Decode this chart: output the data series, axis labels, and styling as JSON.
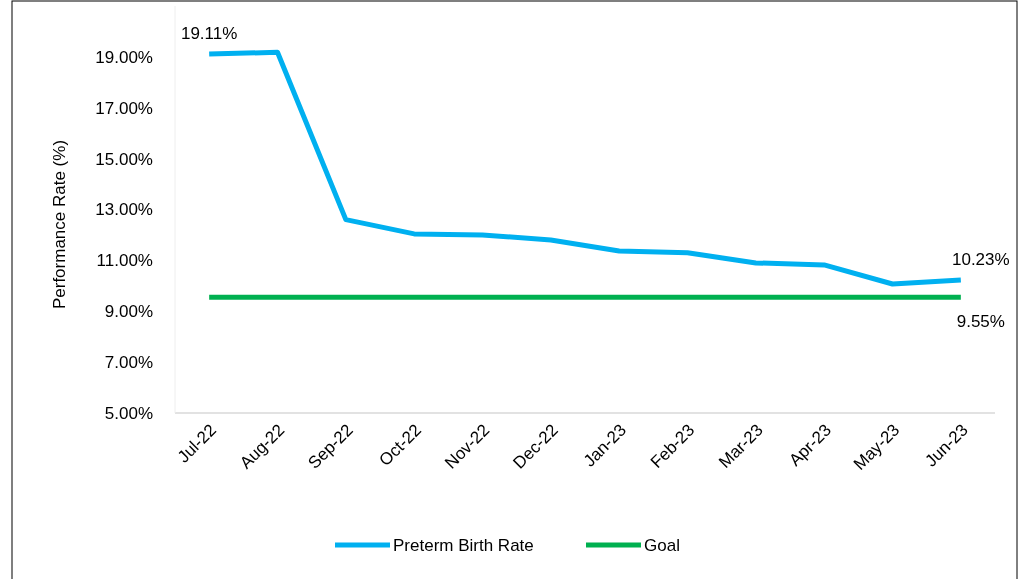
{
  "chart_data": {
    "type": "line",
    "ylabel": "Performance Rate (%)",
    "categories": [
      "Jul-22",
      "Aug-22",
      "Sep-22",
      "Oct-22",
      "Nov-22",
      "Dec-22",
      "Jan-23",
      "Feb-23",
      "Mar-23",
      "Apr-23",
      "May-23",
      "Jun-23"
    ],
    "series": [
      {
        "name": "Preterm Birth Rate",
        "color": "#00b0f0",
        "values": [
          19.11,
          19.18,
          12.6,
          12.04,
          12.0,
          11.8,
          11.37,
          11.3,
          10.9,
          10.82,
          10.07,
          10.23
        ],
        "value_labels": [
          "19.11%",
          null,
          null,
          null,
          null,
          null,
          null,
          null,
          null,
          null,
          null,
          "10.23%"
        ]
      },
      {
        "name": "Goal",
        "color": "#00b050",
        "values": [
          9.55,
          9.55,
          9.55,
          9.55,
          9.55,
          9.55,
          9.55,
          9.55,
          9.55,
          9.55,
          9.55,
          9.55
        ],
        "value_labels": [
          null,
          null,
          null,
          null,
          null,
          null,
          null,
          null,
          null,
          null,
          null,
          "9.55%"
        ]
      }
    ],
    "yticks": [
      {
        "value": 5,
        "label": "5.00%"
      },
      {
        "value": 7,
        "label": "7.00%"
      },
      {
        "value": 9,
        "label": "9.00%"
      },
      {
        "value": 11,
        "label": "11.00%"
      },
      {
        "value": 13,
        "label": "13.00%"
      },
      {
        "value": 15,
        "label": "15.00%"
      },
      {
        "value": 17,
        "label": "17.00%"
      },
      {
        "value": 19,
        "label": "19.00%"
      }
    ],
    "ylim": [
      5,
      21
    ],
    "grid": false,
    "legend": "bottom",
    "marker": "none",
    "line_style": "solid"
  }
}
